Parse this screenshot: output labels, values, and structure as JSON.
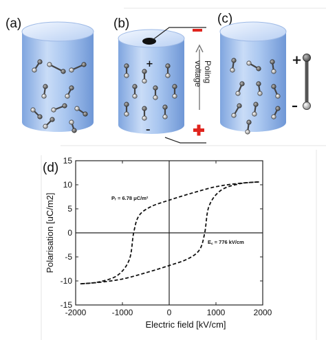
{
  "panels": {
    "a": "(a)",
    "b": "(b)",
    "c": "(c)",
    "d": "(d)"
  },
  "poling": {
    "line1": "Poling",
    "line2": "voltage"
  },
  "signs": {
    "plus": "+",
    "minus": "–"
  },
  "colors": {
    "cyl_light": "#dbe8fb",
    "cyl_mid": "#9fc0ee",
    "cyl_dark": "#6f97d6",
    "top_light": "#eaf2fe",
    "red": "#e0241d"
  },
  "chart_data": {
    "type": "line",
    "title": "",
    "xlabel": "Electric field [kV/cm]",
    "ylabel": "Polarisation [uC/m2]",
    "xlim": [
      -2000,
      2000
    ],
    "ylim": [
      -15,
      15
    ],
    "xticks": [
      -2000,
      -1000,
      0,
      1000,
      2000
    ],
    "yticks": [
      -15,
      -10,
      -5,
      0,
      5,
      10,
      15
    ],
    "grid": false,
    "series": [
      {
        "name": "",
        "x": [
          1920,
          1500,
          1100,
          850,
          760,
          650,
          400,
          0,
          -500,
          -1000,
          -1500,
          -1900
        ],
        "y": [
          10.6,
          10.2,
          8.8,
          5.5,
          0,
          -3.5,
          -5.4,
          -6.8,
          -8.3,
          -9.6,
          -10.3,
          -10.6
        ]
      },
      {
        "name": "",
        "x": [
          -1900,
          -1500,
          -1100,
          -850,
          -760,
          -650,
          -400,
          0,
          500,
          1000,
          1500,
          1920
        ],
        "y": [
          -10.6,
          -10.2,
          -8.8,
          -5.5,
          0,
          3.5,
          5.4,
          6.8,
          8.3,
          9.6,
          10.3,
          10.6
        ]
      }
    ],
    "annotations": [
      {
        "text": "Pᵣ = 6.78 μC/m²"
      },
      {
        "text": "E꜀ = 776 kV/cm"
      }
    ]
  }
}
